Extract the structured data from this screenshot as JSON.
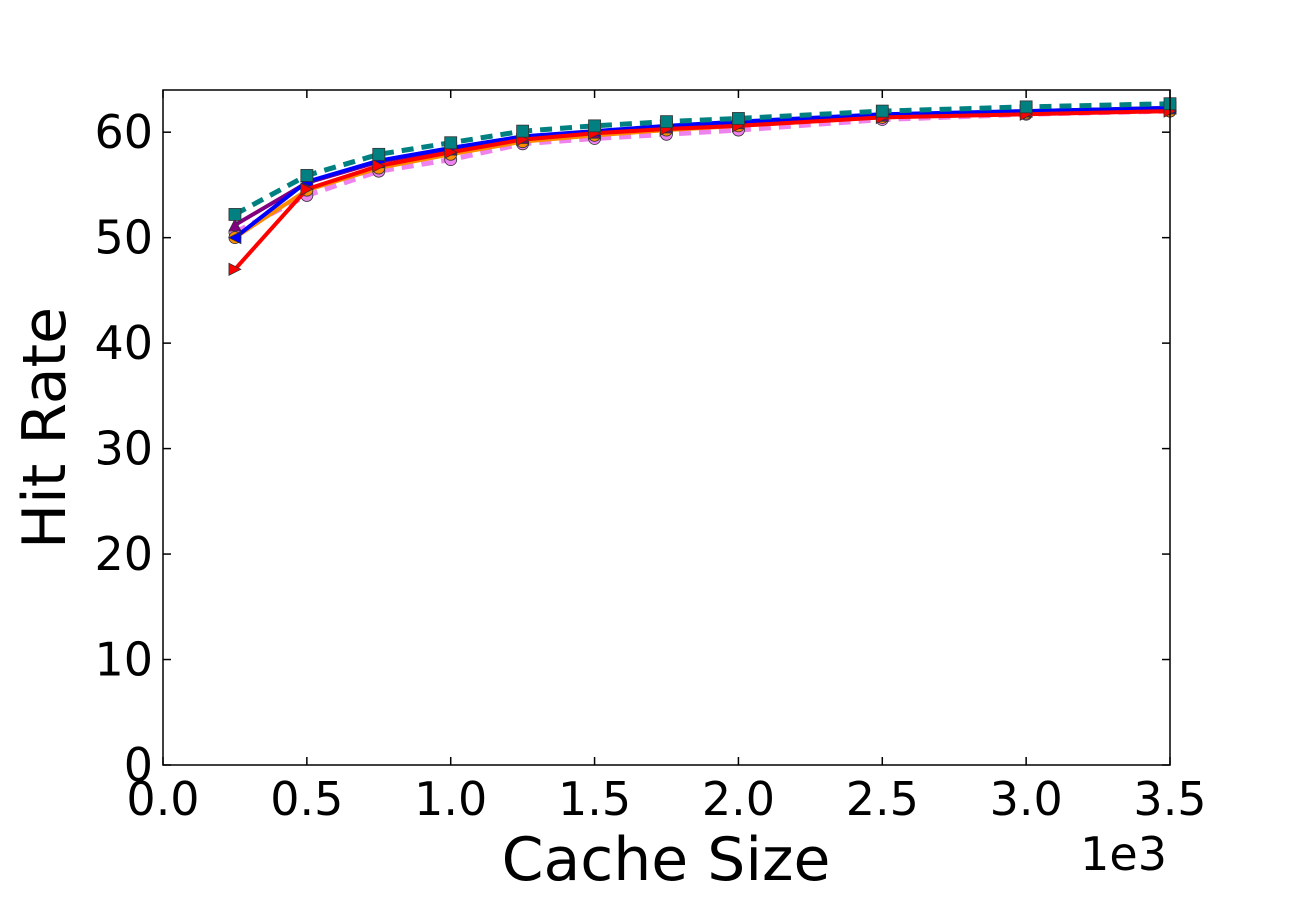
{
  "chart_data": {
    "type": "line",
    "title": "",
    "xlabel": "Cache Size",
    "ylabel": "Hit Rate",
    "x_offset_text": "1e3",
    "xlim": [
      0,
      3.5
    ],
    "ylim": [
      0,
      64
    ],
    "xticks": [
      "0.0",
      "0.5",
      "1.0",
      "1.5",
      "2.0",
      "2.5",
      "3.0",
      "3.5"
    ],
    "yticks": [
      "0",
      "10",
      "20",
      "30",
      "40",
      "50",
      "60"
    ],
    "grid": false,
    "x": [
      0.25,
      0.5,
      0.75,
      1.0,
      1.25,
      1.5,
      1.75,
      2.0,
      2.5,
      3.0,
      3.5
    ],
    "series": [
      {
        "color": "#ee82ee",
        "dashed": true,
        "marker": "circle",
        "values": [
          50.5,
          54.0,
          56.3,
          57.4,
          58.9,
          59.4,
          59.8,
          60.2,
          61.2,
          61.7,
          62.0
        ]
      },
      {
        "color": "#ff8c00",
        "dashed": false,
        "marker": "circle",
        "values": [
          50.0,
          54.5,
          56.6,
          57.9,
          59.1,
          59.7,
          60.2,
          60.6,
          61.4,
          61.8,
          62.0
        ]
      },
      {
        "color": "#800080",
        "dashed": false,
        "marker": "triangle-up",
        "values": [
          51.2,
          55.2,
          57.2,
          58.4,
          59.5,
          60.0,
          60.5,
          60.9,
          61.6,
          62.0,
          62.3
        ]
      },
      {
        "color": "#0000ff",
        "dashed": false,
        "marker": "triangle-left",
        "values": [
          50.0,
          55.3,
          57.3,
          58.5,
          59.6,
          60.1,
          60.6,
          61.0,
          61.7,
          62.0,
          62.3
        ]
      },
      {
        "color": "#ff0000",
        "dashed": false,
        "marker": "triangle-right",
        "values": [
          47.0,
          54.6,
          56.8,
          58.1,
          59.3,
          59.9,
          60.3,
          60.6,
          61.4,
          61.7,
          62.0
        ]
      },
      {
        "color": "#008080",
        "dashed": true,
        "marker": "square",
        "values": [
          52.2,
          55.9,
          57.9,
          59.0,
          60.1,
          60.6,
          61.0,
          61.3,
          62.0,
          62.4,
          62.7
        ]
      }
    ]
  }
}
